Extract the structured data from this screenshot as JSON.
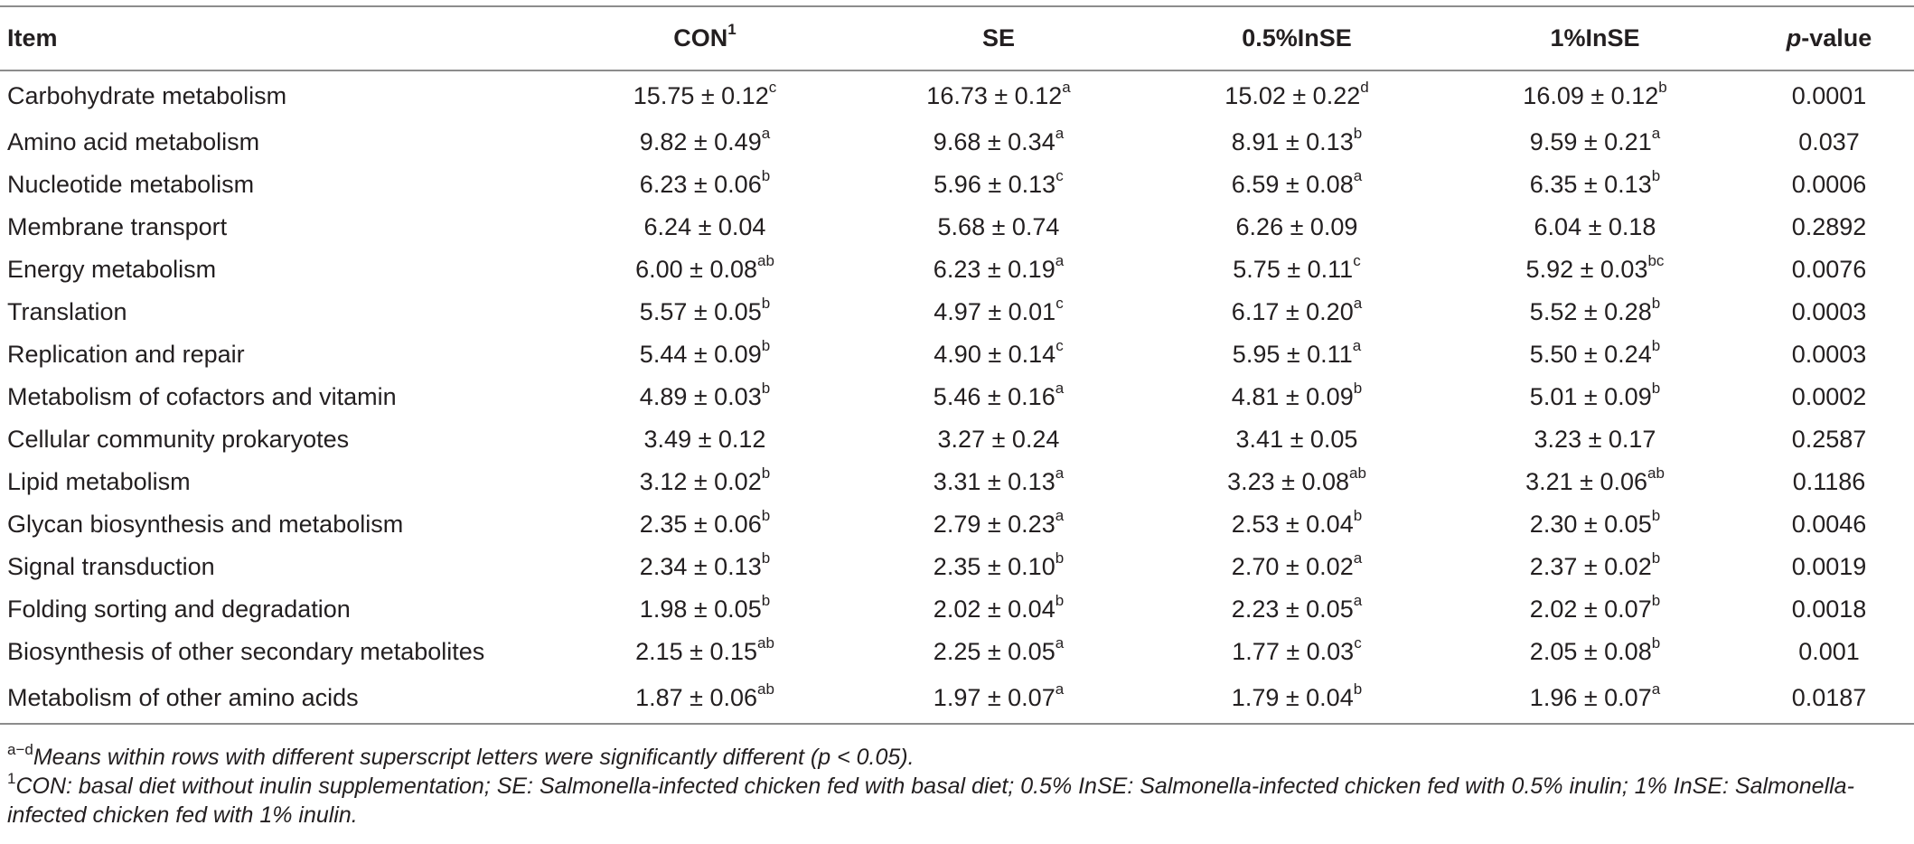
{
  "table": {
    "headers": {
      "item": "Item",
      "con": "CON",
      "con_sup": "1",
      "se": "SE",
      "in05": "0.5%InSE",
      "in1": "1%InSE",
      "p_italic": "p",
      "p_rest": "-value"
    },
    "rows": [
      {
        "item": "Carbohydrate metabolism",
        "con": "15.75 ± 0.12",
        "con_s": "c",
        "se": "16.73 ± 0.12",
        "se_s": "a",
        "in05": "15.02 ± 0.22",
        "in05_s": "d",
        "in1": "16.09 ± 0.12",
        "in1_s": "b",
        "p": "0.0001"
      },
      {
        "item": "Amino acid metabolism",
        "con": "9.82 ± 0.49",
        "con_s": "a",
        "se": "9.68 ± 0.34",
        "se_s": "a",
        "in05": "8.91 ± 0.13",
        "in05_s": "b",
        "in1": "9.59 ± 0.21",
        "in1_s": "a",
        "p": "0.037"
      },
      {
        "item": "Nucleotide metabolism",
        "con": "6.23 ± 0.06",
        "con_s": "b",
        "se": "5.96 ± 0.13",
        "se_s": "c",
        "in05": "6.59 ± 0.08",
        "in05_s": "a",
        "in1": "6.35 ± 0.13",
        "in1_s": "b",
        "p": "0.0006"
      },
      {
        "item": "Membrane transport",
        "con": "6.24 ± 0.04",
        "con_s": "",
        "se": "5.68 ± 0.74",
        "se_s": "",
        "in05": "6.26 ± 0.09",
        "in05_s": "",
        "in1": "6.04 ± 0.18",
        "in1_s": "",
        "p": "0.2892"
      },
      {
        "item": "Energy metabolism",
        "con": "6.00 ± 0.08",
        "con_s": "ab",
        "se": "6.23 ± 0.19",
        "se_s": "a",
        "in05": "5.75 ± 0.11",
        "in05_s": "c",
        "in1": "5.92 ± 0.03",
        "in1_s": "bc",
        "p": "0.0076"
      },
      {
        "item": "Translation",
        "con": "5.57 ± 0.05",
        "con_s": "b",
        "se": "4.97 ± 0.01",
        "se_s": "c",
        "in05": "6.17 ± 0.20",
        "in05_s": "a",
        "in1": "5.52 ± 0.28",
        "in1_s": "b",
        "p": "0.0003"
      },
      {
        "item": "Replication and repair",
        "con": "5.44 ± 0.09",
        "con_s": "b",
        "se": "4.90 ± 0.14",
        "se_s": "c",
        "in05": "5.95 ± 0.11",
        "in05_s": "a",
        "in1": "5.50 ± 0.24",
        "in1_s": "b",
        "p": "0.0003"
      },
      {
        "item": "Metabolism of cofactors and vitamin",
        "con": "4.89 ± 0.03",
        "con_s": "b",
        "se": "5.46 ± 0.16",
        "se_s": "a",
        "in05": "4.81 ± 0.09",
        "in05_s": "b",
        "in1": "5.01 ± 0.09",
        "in1_s": "b",
        "p": "0.0002"
      },
      {
        "item": "Cellular community prokaryotes",
        "con": "3.49 ± 0.12",
        "con_s": "",
        "se": "3.27 ± 0.24",
        "se_s": "",
        "in05": "3.41 ± 0.05",
        "in05_s": "",
        "in1": "3.23 ± 0.17",
        "in1_s": "",
        "p": "0.2587"
      },
      {
        "item": "Lipid metabolism",
        "con": "3.12 ± 0.02",
        "con_s": "b",
        "se": "3.31 ± 0.13",
        "se_s": "a",
        "in05": "3.23 ± 0.08",
        "in05_s": "ab",
        "in1": "3.21 ± 0.06",
        "in1_s": "ab",
        "p": "0.1186"
      },
      {
        "item": "Glycan biosynthesis and metabolism",
        "con": "2.35 ± 0.06",
        "con_s": "b",
        "se": "2.79 ± 0.23",
        "se_s": "a",
        "in05": "2.53 ± 0.04",
        "in05_s": "b",
        "in1": "2.30 ± 0.05",
        "in1_s": "b",
        "p": "0.0046"
      },
      {
        "item": "Signal transduction",
        "con": "2.34 ± 0.13",
        "con_s": "b",
        "se": "2.35 ± 0.10",
        "se_s": "b",
        "in05": "2.70 ± 0.02",
        "in05_s": "a",
        "in1": "2.37 ± 0.02",
        "in1_s": "b",
        "p": "0.0019"
      },
      {
        "item": "Folding sorting and degradation",
        "con": "1.98 ± 0.05",
        "con_s": "b",
        "se": "2.02 ± 0.04",
        "se_s": "b",
        "in05": "2.23 ± 0.05",
        "in05_s": "a",
        "in1": "2.02 ± 0.07",
        "in1_s": "b",
        "p": "0.0018"
      },
      {
        "item": "Biosynthesis of other secondary metabolites",
        "con": "2.15 ± 0.15",
        "con_s": "ab",
        "se": "2.25 ± 0.05",
        "se_s": "a",
        "in05": "1.77 ± 0.03",
        "in05_s": "c",
        "in1": "2.05 ± 0.08",
        "in1_s": "b",
        "p": "0.001"
      },
      {
        "item": "Metabolism of other amino acids",
        "con": "1.87 ± 0.06",
        "con_s": "ab",
        "se": "1.97 ± 0.07",
        "se_s": "a",
        "in05": "1.79 ± 0.04",
        "in05_s": "b",
        "in1": "1.96 ± 0.07",
        "in1_s": "a",
        "p": "0.0187"
      }
    ]
  },
  "notes": {
    "note1_sup": "a−d",
    "note1_text": "Means within rows with different superscript letters were significantly different (p < 0.05).",
    "note2_sup": "1",
    "note2_text": "CON: basal diet without inulin supplementation; SE: Salmonella-infected chicken fed with basal diet; 0.5% InSE: Salmonella-infected chicken fed with 0.5% inulin; 1% InSE: Salmonella-infected chicken fed with 1% inulin."
  }
}
